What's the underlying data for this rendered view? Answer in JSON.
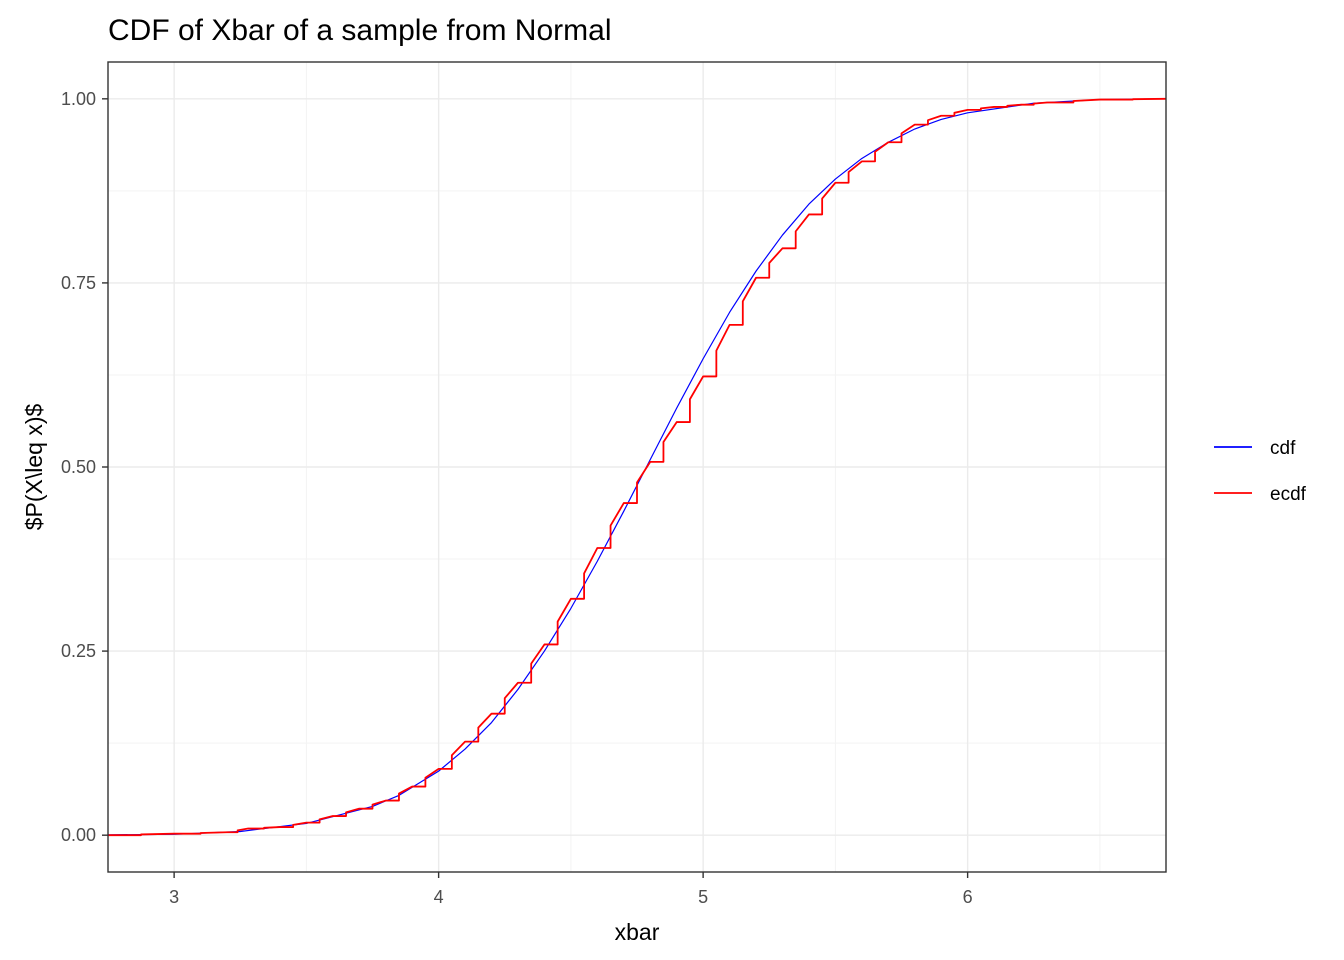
{
  "chart_data": {
    "type": "line",
    "title": "CDF of Xbar of a sample from Normal",
    "xlabel": "xbar",
    "ylabel": "$P(X\\leq x)$",
    "xlim": [
      2.75,
      6.75
    ],
    "ylim": [
      -0.05,
      1.05
    ],
    "x_ticks": [
      3,
      4,
      5,
      6
    ],
    "x_tick_labels": [
      "3",
      "4",
      "5",
      "6"
    ],
    "y_ticks": [
      0,
      0.25,
      0.5,
      0.75,
      1
    ],
    "y_tick_labels": [
      "0.00",
      "0.25",
      "0.50",
      "0.75",
      "1.00"
    ],
    "grid": true,
    "legend_position": "right",
    "series": [
      {
        "name": "cdf",
        "color": "#0000ff",
        "x": [
          2.75,
          3.0,
          3.25,
          3.5,
          3.75,
          3.85,
          4.0,
          4.1,
          4.2,
          4.3,
          4.4,
          4.5,
          4.6,
          4.7,
          4.8,
          4.9,
          5.0,
          5.1,
          5.2,
          5.3,
          5.4,
          5.5,
          5.6,
          5.7,
          5.8,
          5.9,
          6.0,
          6.25,
          6.5,
          6.75
        ],
        "y": [
          0.0005,
          0.0012,
          0.005,
          0.016,
          0.039,
          0.054,
          0.087,
          0.117,
          0.153,
          0.198,
          0.25,
          0.308,
          0.372,
          0.44,
          0.51,
          0.58,
          0.647,
          0.71,
          0.766,
          0.815,
          0.857,
          0.891,
          0.919,
          0.941,
          0.959,
          0.972,
          0.981,
          0.994,
          0.999,
          1.0
        ]
      },
      {
        "name": "ecdf",
        "color": "#ff0000",
        "x": [
          2.75,
          3.0,
          3.2,
          3.28,
          3.4,
          3.5,
          3.6,
          3.7,
          3.8,
          3.9,
          4.0,
          4.1,
          4.2,
          4.3,
          4.4,
          4.5,
          4.6,
          4.7,
          4.8,
          4.9,
          5.0,
          5.1,
          5.2,
          5.3,
          5.4,
          5.5,
          5.6,
          5.7,
          5.8,
          5.9,
          6.0,
          6.1,
          6.2,
          6.3,
          6.5,
          6.75
        ],
        "y": [
          0.0,
          0.002,
          0.004,
          0.009,
          0.011,
          0.017,
          0.026,
          0.036,
          0.047,
          0.066,
          0.09,
          0.127,
          0.165,
          0.207,
          0.259,
          0.321,
          0.39,
          0.451,
          0.507,
          0.561,
          0.623,
          0.693,
          0.757,
          0.797,
          0.843,
          0.886,
          0.915,
          0.941,
          0.965,
          0.977,
          0.985,
          0.989,
          0.992,
          0.995,
          0.999,
          1.0
        ]
      }
    ]
  }
}
